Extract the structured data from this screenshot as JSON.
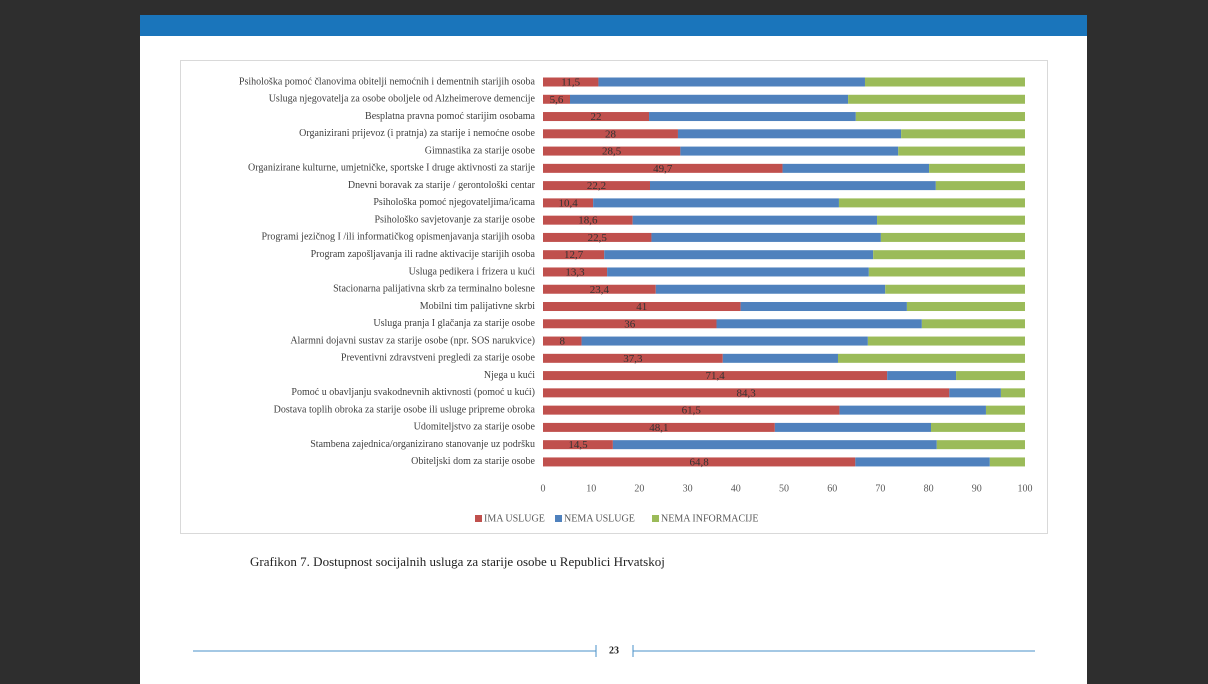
{
  "chart_data": {
    "type": "stacked_barh",
    "categories": [
      "Psihološka pomoć članovima obitelji nemoćnih i dementnih starijih osoba",
      "Usluga njegovatelja za osobe oboljele od Alzheimerove demencije",
      "Besplatna pravna pomoć starijim osobama",
      "Organizirani prijevoz (i pratnja) za starije i nemoćne osobe",
      "Gimnastika za starije osobe",
      "Organizirane kulturne, umjetničke, sportske I druge aktivnosti za starije",
      "Dnevni boravak za starije / gerontološki centar",
      "Psihološka pomoć njegovateljima/icama",
      "Psihološko savjetovanje za starije osobe",
      "Programi jezičnog I /ili informatičkog opismenjavanja starijih osoba",
      "Program zapošljavanja ili radne aktivacije starijih osoba",
      "Usluga pedikera i frizera u kući",
      "Stacionarna palijativna skrb za terminalno bolesne",
      "Mobilni tim palijativne skrbi",
      "Usluga pranja I glačanja za starije osobe",
      "Alarmni dojavni sustav za starije osobe (npr. SOS narukvice)",
      "Preventivni zdravstveni pregledi za starije osobe",
      "Njega u kući",
      "Pomoć u obavljanju svakodnevnih aktivnosti (pomoć u kući)",
      "Dostava toplih obroka za starije osobe ili usluge pripreme obroka",
      "Udomiteljstvo za starije osobe",
      "Stambena zajednica/organizirano stanovanje uz podršku",
      "Obiteljski dom za starije osobe"
    ],
    "series": [
      {
        "name": "IMA USLUGE",
        "color": "#c0504d",
        "values": [
          11.5,
          5.6,
          22,
          28,
          28.5,
          49.7,
          22.2,
          10.4,
          18.6,
          22.5,
          12.7,
          13.3,
          23.4,
          41,
          36,
          8,
          37.3,
          71.4,
          84.3,
          61.5,
          48.1,
          14.5,
          64.8
        ],
        "value_labels": [
          "11,5",
          "5,6",
          "22",
          "28",
          "28,5",
          "49,7",
          "22,2",
          "10,4",
          "18,6",
          "22,5",
          "12,7",
          "13,3",
          "23,4",
          "41",
          "36",
          "8",
          "37,3",
          "71,4",
          "84,3",
          "61,5",
          "48,1",
          "14,5",
          "64,8"
        ]
      },
      {
        "name": "NEMA USLUGE",
        "color": "#4f81bd",
        "values": [
          55.3,
          57.7,
          42.9,
          46.3,
          45.2,
          30.4,
          59.3,
          51,
          50.7,
          47.6,
          55.8,
          54.3,
          47.6,
          34.5,
          42.6,
          59.4,
          23.9,
          14.3,
          10.7,
          30.4,
          32.4,
          67.2,
          27.9
        ]
      },
      {
        "name": "NEMA INFORMACIJE",
        "color": "#9bbb59",
        "values": [
          33.2,
          36.7,
          35.1,
          25.7,
          26.3,
          19.9,
          18.5,
          38.6,
          30.7,
          29.9,
          31.5,
          32.4,
          29,
          24.5,
          21.4,
          32.6,
          38.8,
          14.3,
          5,
          8.1,
          19.5,
          18.3,
          7.3
        ]
      }
    ],
    "xlim": [
      0,
      100
    ],
    "xticks": [
      0,
      10,
      20,
      30,
      40,
      50,
      60,
      70,
      80,
      90,
      100
    ],
    "legend": "bottom"
  },
  "caption": "Grafikon 7.  Dostupnost socijalnih usluga za starije osobe u Republici Hrvatskoj",
  "page_number": "23"
}
